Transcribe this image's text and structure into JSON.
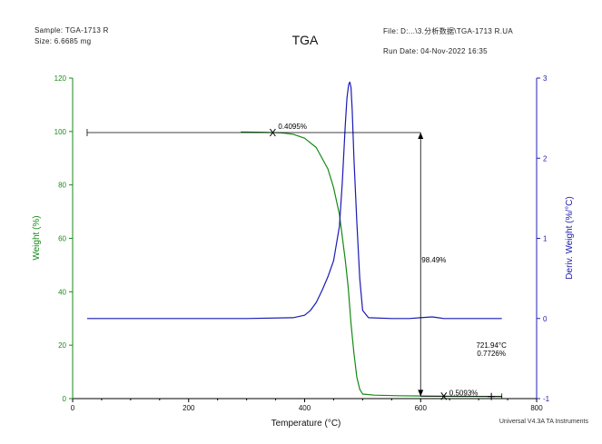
{
  "header": {
    "sample": "Sample: TGA-1713 R",
    "size": "Size: 6.6685 mg",
    "file": "File: D:...\\3.分析数据\\TGA-1713 R.UA",
    "run_date": "Run Date: 04-Nov-2022 16:35",
    "title": "TGA"
  },
  "footer": {
    "software": "Universal V4.3A TA Instruments"
  },
  "colors": {
    "weight": "#138a13",
    "deriv": "#1a1ab4",
    "axis_left": "#1a8a1a",
    "axis_right": "#2020b0",
    "annot": "#000000"
  },
  "chart_data": {
    "type": "line",
    "title": "TGA",
    "xlabel": "Temperature (°C)",
    "ylabel": "Weight (%)",
    "y2label": "Deriv. Weight (%/°C)",
    "xlim": [
      0,
      800
    ],
    "ylim": [
      0,
      120
    ],
    "y2lim": [
      -1,
      3
    ],
    "x_ticks": [
      0,
      200,
      400,
      600,
      800
    ],
    "y_ticks": [
      0,
      20,
      40,
      60,
      80,
      100,
      120
    ],
    "y2_ticks": [
      -1,
      0,
      1,
      2,
      3
    ],
    "series": [
      {
        "name": "Weight (%)",
        "axis": "left",
        "x": [
          290,
          330,
          360,
          380,
          400,
          420,
          440,
          450,
          460,
          470,
          475,
          480,
          485,
          490,
          495,
          500,
          520,
          560,
          600,
          640,
          680,
          720,
          740
        ],
        "values": [
          99.8,
          99.7,
          99.5,
          99.0,
          97.5,
          94,
          86,
          79,
          69,
          52,
          42,
          28,
          17,
          8,
          3.5,
          1.7,
          1.3,
          1.1,
          1.0,
          0.9,
          0.85,
          0.77,
          0.75
        ]
      },
      {
        "name": "Deriv. Weight (%/°C)",
        "axis": "right",
        "x": [
          25,
          100,
          200,
          300,
          380,
          400,
          410,
          420,
          430,
          440,
          450,
          460,
          465,
          470,
          473,
          476,
          478,
          480,
          482,
          485,
          490,
          495,
          500,
          510,
          550,
          580,
          600,
          620,
          630,
          640,
          680,
          740
        ],
        "values": [
          0,
          0,
          0,
          0,
          0.01,
          0.04,
          0.1,
          0.2,
          0.35,
          0.52,
          0.72,
          1.15,
          1.7,
          2.4,
          2.75,
          2.92,
          2.95,
          2.88,
          2.6,
          2.0,
          1.2,
          0.5,
          0.1,
          0.01,
          0,
          0,
          0.01,
          0.02,
          0.01,
          0,
          0,
          0
        ]
      }
    ],
    "annotations": [
      {
        "text": "0.4095%",
        "x": 345,
        "y": 100
      },
      {
        "text": "98.49%",
        "x": 600,
        "y": 52
      },
      {
        "text": "0.5093%",
        "x": 640,
        "y": 1.2
      },
      {
        "text": "721.94°C",
        "x": 722,
        "y": 19
      },
      {
        "text": "0.7726%",
        "x": 722,
        "y": 16
      }
    ]
  }
}
